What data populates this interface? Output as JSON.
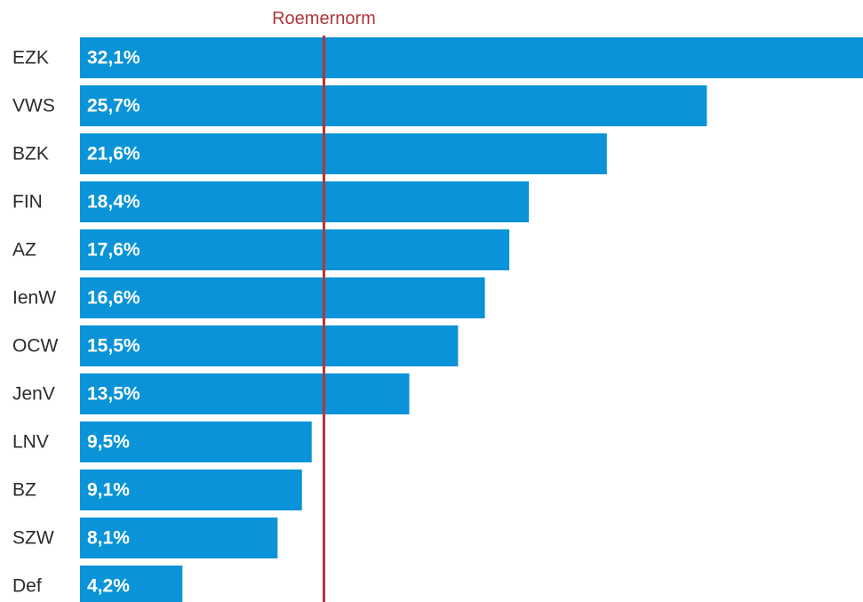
{
  "chart_data": {
    "type": "bar",
    "orientation": "horizontal",
    "categories": [
      "EZK",
      "VWS",
      "BZK",
      "FIN",
      "AZ",
      "IenW",
      "OCW",
      "JenV",
      "LNV",
      "BZ",
      "SZW",
      "Def"
    ],
    "values": [
      32.1,
      25.7,
      21.6,
      18.4,
      17.6,
      16.6,
      15.5,
      13.5,
      9.5,
      9.1,
      8.1,
      4.2
    ],
    "value_labels": [
      "32,1%",
      "25,7%",
      "21,6%",
      "18,4%",
      "17,6%",
      "16,6%",
      "15,5%",
      "13,5%",
      "9,5%",
      "9,1%",
      "8,1%",
      "4,2%"
    ],
    "reference_line": {
      "label": "Roemernorm",
      "value": 10
    },
    "xlim": [
      0,
      32.1
    ],
    "grid": false,
    "legend": "none",
    "colors": {
      "bar": "#0a93d8",
      "reference": "#b0353b",
      "text": "#2b2b2b",
      "value_text": "#ffffff"
    }
  }
}
